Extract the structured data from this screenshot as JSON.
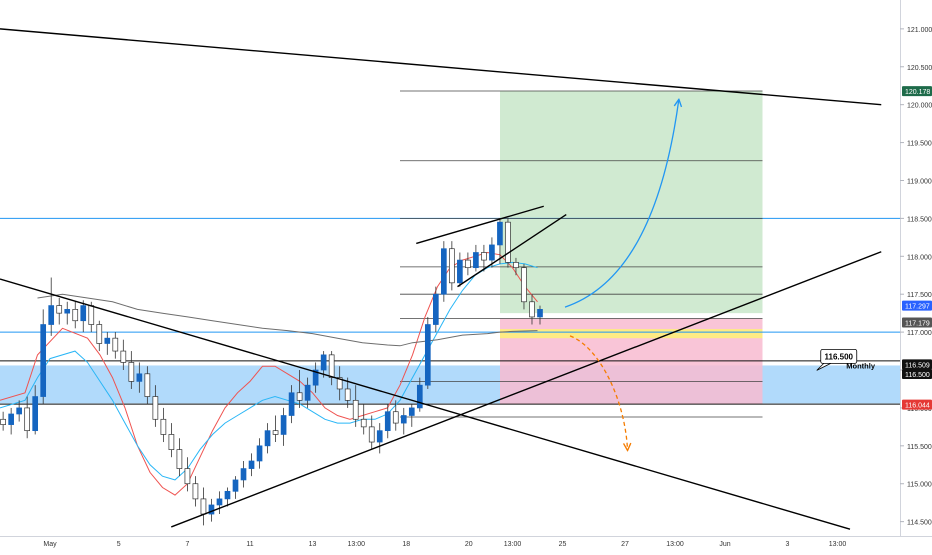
{
  "chart_data": {
    "type": "candlestick",
    "y_axis": {
      "range": [
        114.3,
        121.2
      ],
      "ticks": [
        "121.000",
        "120.500",
        "120.000",
        "119.500",
        "119.000",
        "118.500",
        "118.000",
        "117.500",
        "117.000",
        "116.500",
        "116.000",
        "115.500",
        "115.000",
        "114.500"
      ],
      "position": "right"
    },
    "x_axis": {
      "range": [
        0,
        72
      ],
      "ticks": [
        {
          "label": "May",
          "x": 4
        },
        {
          "label": "5",
          "x": 9.5
        },
        {
          "label": "7",
          "x": 15
        },
        {
          "label": "11",
          "x": 20
        },
        {
          "label": "13",
          "x": 25
        },
        {
          "label": "13:00",
          "x": 28.5
        },
        {
          "label": "18",
          "x": 32.5
        },
        {
          "label": "20",
          "x": 37.5
        },
        {
          "label": "13:00",
          "x": 41
        },
        {
          "label": "25",
          "x": 45
        },
        {
          "label": "27",
          "x": 50
        },
        {
          "label": "13:00",
          "x": 54
        },
        {
          "label": "Jun",
          "x": 58
        },
        {
          "label": "3",
          "x": 63
        },
        {
          "label": "13:00",
          "x": 67
        }
      ]
    },
    "price_labels": [
      {
        "text": "120.178",
        "value": 120.178,
        "color": "#1e6b4a"
      },
      {
        "text": "117.297",
        "value": 117.297,
        "color": "#2962ff"
      },
      {
        "text": "117.179",
        "value": 117.179,
        "color": "#555555"
      },
      {
        "text": "116.509",
        "value": 116.509,
        "color": "#111111"
      },
      {
        "text": "116.500",
        "value": 116.5,
        "color": "#111111"
      },
      {
        "text": "116.044",
        "value": 116.044,
        "color": "#e53935"
      }
    ],
    "annotations": [
      {
        "text": "116.500",
        "type": "callout",
        "x": 66.3,
        "y": 116.68
      },
      {
        "text": "Monthly",
        "type": "label",
        "x": 67.7,
        "y": 116.56
      }
    ],
    "zones": [
      {
        "name": "support-zone",
        "y0": 116.06,
        "y1": 116.56,
        "color": "#90caf9"
      },
      {
        "name": "profit-zone",
        "x0": 40,
        "x1": 61,
        "y0": 117.25,
        "y1": 120.18,
        "color": "#c8e6c9"
      },
      {
        "name": "loss-zone",
        "x0": 40,
        "x1": 61,
        "y0": 116.05,
        "y1": 117.18,
        "color": "#f8bbd0"
      },
      {
        "name": "entry-zone",
        "x0": 40,
        "x1": 61,
        "y0": 116.92,
        "y1": 117.04,
        "color": "#fff176"
      }
    ],
    "horizontal_lines": [
      {
        "y": 118.5,
        "color": "#2196f3",
        "x0": 0,
        "x1": 72
      },
      {
        "y": 117.0,
        "color": "#2196f3",
        "x0": 0,
        "x1": 72
      },
      {
        "y": 116.62,
        "color": "#111111",
        "x0": 0,
        "x1": 72
      },
      {
        "y": 116.05,
        "color": "#111111",
        "x0": 0,
        "x1": 72
      },
      {
        "y": 120.18,
        "color": "#444444",
        "x0": 32,
        "x1": 61
      },
      {
        "y": 119.26,
        "color": "#444444",
        "x0": 32,
        "x1": 61
      },
      {
        "y": 118.5,
        "color": "#444444",
        "x0": 32,
        "x1": 61
      },
      {
        "y": 117.86,
        "color": "#444444",
        "x0": 32,
        "x1": 61
      },
      {
        "y": 117.5,
        "color": "#444444",
        "x0": 32,
        "x1": 61
      },
      {
        "y": 117.18,
        "color": "#444444",
        "x0": 32,
        "x1": 61
      },
      {
        "y": 116.35,
        "color": "#444444",
        "x0": 32,
        "x1": 61
      },
      {
        "y": 115.88,
        "color": "#444444",
        "x0": 32,
        "x1": 61
      }
    ],
    "trendlines": [
      {
        "name": "upper-resistance",
        "points": [
          [
            0,
            121.0
          ],
          [
            70.5,
            120.0
          ]
        ],
        "color": "#000000"
      },
      {
        "name": "descending-trendline",
        "points": [
          [
            0,
            117.7
          ],
          [
            68,
            114.4
          ]
        ],
        "color": "#000000"
      },
      {
        "name": "ascending-trendline",
        "points": [
          [
            13.7,
            114.43
          ],
          [
            70.5,
            118.06
          ]
        ],
        "color": "#000000"
      },
      {
        "name": "wedge-top",
        "points": [
          [
            33.3,
            118.17
          ],
          [
            43.5,
            118.66
          ]
        ],
        "color": "#000000"
      },
      {
        "name": "wedge-bottom",
        "points": [
          [
            36.6,
            117.6
          ],
          [
            45.3,
            118.55
          ]
        ],
        "color": "#000000"
      }
    ],
    "projections": [
      {
        "name": "bullish-projection",
        "color": "#2196f3",
        "points": [
          [
            45.2,
            117.33
          ],
          [
            50,
            117.6
          ],
          [
            53,
            118.5
          ],
          [
            54.3,
            120.06
          ]
        ]
      },
      {
        "name": "bearish-projection",
        "color": "#f57c00",
        "points": [
          [
            45.6,
            116.95
          ],
          [
            48,
            116.8
          ],
          [
            50,
            116.1
          ],
          [
            50.2,
            115.45
          ]
        ]
      }
    ],
    "moving_averages": [
      {
        "name": "ma-red",
        "color": "#ef5350",
        "values": [
          [
            0,
            116.1
          ],
          [
            2,
            116.2
          ],
          [
            3,
            116.7
          ],
          [
            5,
            117.05
          ],
          [
            7,
            116.92
          ],
          [
            8,
            116.7
          ],
          [
            9,
            116.4
          ],
          [
            10,
            116.0
          ],
          [
            11,
            115.5
          ],
          [
            12,
            115.15
          ],
          [
            13,
            114.95
          ],
          [
            14,
            114.85
          ],
          [
            15,
            115.0
          ],
          [
            16,
            115.35
          ],
          [
            17,
            115.7
          ],
          [
            18,
            116.0
          ],
          [
            19,
            116.2
          ],
          [
            20,
            116.35
          ],
          [
            21,
            116.55
          ],
          [
            22,
            116.55
          ],
          [
            23,
            116.45
          ],
          [
            24,
            116.35
          ],
          [
            25,
            116.2
          ],
          [
            26,
            116.0
          ],
          [
            27,
            115.9
          ],
          [
            28,
            115.85
          ],
          [
            29,
            115.9
          ],
          [
            30,
            115.95
          ],
          [
            31,
            116.0
          ],
          [
            32,
            116.3
          ],
          [
            33,
            116.7
          ],
          [
            34,
            117.2
          ],
          [
            35,
            117.6
          ],
          [
            36,
            117.85
          ],
          [
            37,
            117.95
          ],
          [
            38,
            118.0
          ],
          [
            39,
            118.05
          ],
          [
            40,
            118.02
          ],
          [
            41,
            117.85
          ],
          [
            42,
            117.6
          ],
          [
            43,
            117.4
          ]
        ]
      },
      {
        "name": "ma-blue",
        "color": "#29b6f6",
        "values": [
          [
            0,
            116.0
          ],
          [
            2,
            116.1
          ],
          [
            3,
            116.4
          ],
          [
            4,
            116.65
          ],
          [
            6,
            116.75
          ],
          [
            7,
            116.6
          ],
          [
            8,
            116.35
          ],
          [
            9,
            116.1
          ],
          [
            10,
            115.8
          ],
          [
            11,
            115.5
          ],
          [
            12,
            115.25
          ],
          [
            13,
            115.1
          ],
          [
            14,
            115.05
          ],
          [
            15,
            115.2
          ],
          [
            16,
            115.45
          ],
          [
            17,
            115.65
          ],
          [
            18,
            115.8
          ],
          [
            19,
            115.9
          ],
          [
            20,
            116.0
          ],
          [
            21,
            116.1
          ],
          [
            22,
            116.15
          ],
          [
            23,
            116.1
          ],
          [
            24,
            116.05
          ],
          [
            25,
            115.95
          ],
          [
            26,
            115.85
          ],
          [
            27,
            115.8
          ],
          [
            28,
            115.8
          ],
          [
            29,
            115.85
          ],
          [
            30,
            115.85
          ],
          [
            31,
            115.92
          ],
          [
            32,
            116.1
          ],
          [
            33,
            116.4
          ],
          [
            34,
            116.7
          ],
          [
            35,
            117.0
          ],
          [
            36,
            117.3
          ],
          [
            37,
            117.55
          ],
          [
            38,
            117.75
          ],
          [
            39,
            117.85
          ],
          [
            40,
            117.9
          ],
          [
            41,
            117.92
          ],
          [
            42,
            117.9
          ],
          [
            43,
            117.85
          ]
        ]
      },
      {
        "name": "ma-gray",
        "color": "#6d6d6d",
        "values": [
          [
            3,
            117.45
          ],
          [
            5,
            117.5
          ],
          [
            7,
            117.45
          ],
          [
            9,
            117.4
          ],
          [
            11,
            117.3
          ],
          [
            13,
            117.25
          ],
          [
            15,
            117.2
          ],
          [
            17,
            117.15
          ],
          [
            19,
            117.1
          ],
          [
            21,
            117.05
          ],
          [
            23,
            117.02
          ],
          [
            25,
            116.98
          ],
          [
            27,
            116.92
          ],
          [
            29,
            116.86
          ],
          [
            31,
            116.83
          ],
          [
            32,
            116.82
          ],
          [
            33,
            116.86
          ],
          [
            35,
            116.9
          ],
          [
            37,
            116.96
          ],
          [
            39,
            116.98
          ],
          [
            40,
            117.0
          ],
          [
            41,
            117.01
          ],
          [
            43,
            117.02
          ]
        ]
      }
    ],
    "candles": [
      [
        115.85,
        115.95,
        115.7,
        115.78
      ],
      [
        115.78,
        116.0,
        115.65,
        115.92
      ],
      [
        115.92,
        116.1,
        115.82,
        116.0
      ],
      [
        116.0,
        116.15,
        115.6,
        115.7
      ],
      [
        115.7,
        116.3,
        115.65,
        116.15
      ],
      [
        116.15,
        117.3,
        116.05,
        117.1
      ],
      [
        117.1,
        117.72,
        116.95,
        117.35
      ],
      [
        117.35,
        117.45,
        117.1,
        117.25
      ],
      [
        117.25,
        117.4,
        117.1,
        117.3
      ],
      [
        117.3,
        117.4,
        117.05,
        117.15
      ],
      [
        117.15,
        117.42,
        117.0,
        117.35
      ],
      [
        117.35,
        117.4,
        117.0,
        117.1
      ],
      [
        117.1,
        117.15,
        116.75,
        116.85
      ],
      [
        116.85,
        117.0,
        116.7,
        116.92
      ],
      [
        116.92,
        117.0,
        116.65,
        116.75
      ],
      [
        116.75,
        116.9,
        116.5,
        116.6
      ],
      [
        116.6,
        116.75,
        116.25,
        116.35
      ],
      [
        116.35,
        116.6,
        116.2,
        116.45
      ],
      [
        116.45,
        116.55,
        116.05,
        116.15
      ],
      [
        116.15,
        116.3,
        115.75,
        115.85
      ],
      [
        115.85,
        116.0,
        115.55,
        115.65
      ],
      [
        115.65,
        115.8,
        115.35,
        115.45
      ],
      [
        115.45,
        115.6,
        115.1,
        115.2
      ],
      [
        115.2,
        115.35,
        114.9,
        115.0
      ],
      [
        115.0,
        115.1,
        114.7,
        114.8
      ],
      [
        114.8,
        114.95,
        114.45,
        114.6
      ],
      [
        114.6,
        114.8,
        114.5,
        114.72
      ],
      [
        114.72,
        114.9,
        114.6,
        114.8
      ],
      [
        114.8,
        114.95,
        114.7,
        114.9
      ],
      [
        114.9,
        115.1,
        114.8,
        115.05
      ],
      [
        115.05,
        115.3,
        114.95,
        115.2
      ],
      [
        115.2,
        115.4,
        115.1,
        115.3
      ],
      [
        115.3,
        115.6,
        115.2,
        115.5
      ],
      [
        115.5,
        115.8,
        115.4,
        115.7
      ],
      [
        115.7,
        115.9,
        115.55,
        115.65
      ],
      [
        115.65,
        116.0,
        115.5,
        115.9
      ],
      [
        115.9,
        116.3,
        115.8,
        116.2
      ],
      [
        116.2,
        116.5,
        116.0,
        116.1
      ],
      [
        116.1,
        116.4,
        116.0,
        116.3
      ],
      [
        116.3,
        116.6,
        116.2,
        116.5
      ],
      [
        116.5,
        116.75,
        116.4,
        116.7
      ],
      [
        116.7,
        116.75,
        116.3,
        116.4
      ],
      [
        116.4,
        116.55,
        116.1,
        116.25
      ],
      [
        116.25,
        116.4,
        116.0,
        116.1
      ],
      [
        116.1,
        116.3,
        115.75,
        115.85
      ],
      [
        115.85,
        116.05,
        115.65,
        115.75
      ],
      [
        115.75,
        115.9,
        115.45,
        115.55
      ],
      [
        115.55,
        115.8,
        115.4,
        115.7
      ],
      [
        115.7,
        116.05,
        115.6,
        115.95
      ],
      [
        115.95,
        116.1,
        115.7,
        115.8
      ],
      [
        115.8,
        116.0,
        115.65,
        115.9
      ],
      [
        115.9,
        116.05,
        115.75,
        116.0
      ],
      [
        116.0,
        116.4,
        115.95,
        116.3
      ],
      [
        116.3,
        117.2,
        116.25,
        117.1
      ],
      [
        117.1,
        117.6,
        117.0,
        117.5
      ],
      [
        117.5,
        118.2,
        117.4,
        118.1
      ],
      [
        118.1,
        118.2,
        117.55,
        117.65
      ],
      [
        117.65,
        118.05,
        117.6,
        117.95
      ],
      [
        117.95,
        118.05,
        117.75,
        117.85
      ],
      [
        117.85,
        118.15,
        117.8,
        118.05
      ],
      [
        118.05,
        118.15,
        117.8,
        117.95
      ],
      [
        117.95,
        118.25,
        117.85,
        118.15
      ],
      [
        118.15,
        118.5,
        117.9,
        118.45
      ],
      [
        118.45,
        118.5,
        117.85,
        117.92
      ],
      [
        117.92,
        117.98,
        117.75,
        117.85
      ],
      [
        117.85,
        117.9,
        117.3,
        117.4
      ],
      [
        117.4,
        117.5,
        117.1,
        117.2
      ],
      [
        117.2,
        117.35,
        117.1,
        117.3
      ]
    ]
  }
}
